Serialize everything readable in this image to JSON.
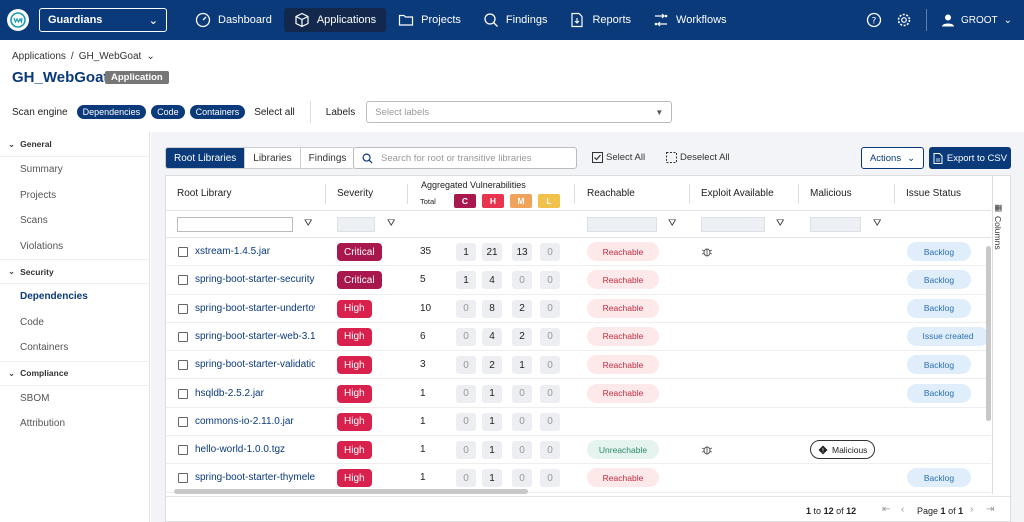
{
  "nav": {
    "org": "Guardians",
    "items": [
      {
        "label": "Dashboard",
        "icon": "dashboard-icon"
      },
      {
        "label": "Applications",
        "icon": "cube-icon",
        "active": true
      },
      {
        "label": "Projects",
        "icon": "folder-icon"
      },
      {
        "label": "Findings",
        "icon": "search-icon"
      },
      {
        "label": "Reports",
        "icon": "report-icon"
      },
      {
        "label": "Workflows",
        "icon": "workflow-icon"
      }
    ],
    "user": "GROOT"
  },
  "breadcrumb": {
    "parent": "Applications",
    "separator": "/",
    "current": "GH_WebGoat"
  },
  "page": {
    "title": "GH_WebGoat",
    "type_badge": "Application"
  },
  "scan": {
    "label": "Scan engine",
    "engines": [
      "Dependencies",
      "Code",
      "Containers"
    ],
    "select_all": "Select all",
    "labels_label": "Labels",
    "labels_placeholder": "Select labels"
  },
  "sidebar": {
    "sections": [
      {
        "title": "General",
        "items": [
          "Summary",
          "Projects",
          "Scans",
          "Violations"
        ]
      },
      {
        "title": "Security",
        "items": [
          "Dependencies",
          "Code",
          "Containers"
        ]
      },
      {
        "title": "Compliance",
        "items": [
          "SBOM",
          "Attribution"
        ]
      }
    ],
    "active": "Dependencies"
  },
  "toolbar": {
    "tabs": [
      "Root Libraries",
      "Libraries",
      "Findings"
    ],
    "search_placeholder": "Search for root or transitive libraries",
    "select_all": "Select All",
    "deselect_all": "Deselect All",
    "actions": "Actions",
    "export": "Export to CSV"
  },
  "table": {
    "columns": {
      "root_library": "Root Library",
      "severity": "Severity",
      "aggregated": "Aggregated Vulnerabilities",
      "total": "Total",
      "sev_c": "C",
      "sev_h": "H",
      "sev_m": "M",
      "sev_l": "L",
      "reachable": "Reachable",
      "exploit": "Exploit Available",
      "malicious": "Malicious",
      "issue_status": "Issue Status"
    },
    "colors": {
      "C": "#a8174d",
      "H": "#e8344f",
      "M": "#f0a35a",
      "L": "#f2c14a"
    },
    "rows": [
      {
        "library": "xstream-1.4.5.jar",
        "severity": "Critical",
        "total": "35",
        "c": "1",
        "h": "21",
        "m": "13",
        "l": "0",
        "reachable": "Reachable",
        "exploit": true,
        "malicious": "",
        "issue": "Backlog"
      },
      {
        "library": "spring-boot-starter-security-",
        "severity": "Critical",
        "total": "5",
        "c": "1",
        "h": "4",
        "m": "0",
        "l": "0",
        "reachable": "Reachable",
        "exploit": false,
        "malicious": "",
        "issue": "Backlog"
      },
      {
        "library": "spring-boot-starter-undertow",
        "severity": "High",
        "total": "10",
        "c": "0",
        "h": "8",
        "m": "2",
        "l": "0",
        "reachable": "Reachable",
        "exploit": false,
        "malicious": "",
        "issue": "Backlog"
      },
      {
        "library": "spring-boot-starter-web-3.1.",
        "severity": "High",
        "total": "6",
        "c": "0",
        "h": "4",
        "m": "2",
        "l": "0",
        "reachable": "Reachable",
        "exploit": false,
        "malicious": "",
        "issue": "Issue created"
      },
      {
        "library": "spring-boot-starter-validatio",
        "severity": "High",
        "total": "3",
        "c": "0",
        "h": "2",
        "m": "1",
        "l": "0",
        "reachable": "Reachable",
        "exploit": false,
        "malicious": "",
        "issue": "Backlog"
      },
      {
        "library": "hsqldb-2.5.2.jar",
        "severity": "High",
        "total": "1",
        "c": "0",
        "h": "1",
        "m": "0",
        "l": "0",
        "reachable": "Reachable",
        "exploit": false,
        "malicious": "",
        "issue": "Backlog"
      },
      {
        "library": "commons-io-2.11.0.jar",
        "severity": "High",
        "total": "1",
        "c": "0",
        "h": "1",
        "m": "0",
        "l": "0",
        "reachable": "",
        "exploit": false,
        "malicious": "",
        "issue": ""
      },
      {
        "library": "hello-world-1.0.0.tgz",
        "severity": "High",
        "total": "1",
        "c": "0",
        "h": "1",
        "m": "0",
        "l": "0",
        "reachable": "Unreachable",
        "exploit": true,
        "malicious": "Malicious",
        "issue": ""
      },
      {
        "library": "spring-boot-starter-thymeleaf",
        "severity": "High",
        "total": "1",
        "c": "0",
        "h": "1",
        "m": "0",
        "l": "0",
        "reachable": "Reachable",
        "exploit": false,
        "malicious": "",
        "issue": "Backlog"
      }
    ],
    "columns_panel": "Columns"
  },
  "pagination": {
    "from": "1",
    "to_word": "to",
    "to": "12",
    "of_word": "of",
    "total": "12",
    "page_word": "Page",
    "page": "1",
    "page_total": "1"
  }
}
